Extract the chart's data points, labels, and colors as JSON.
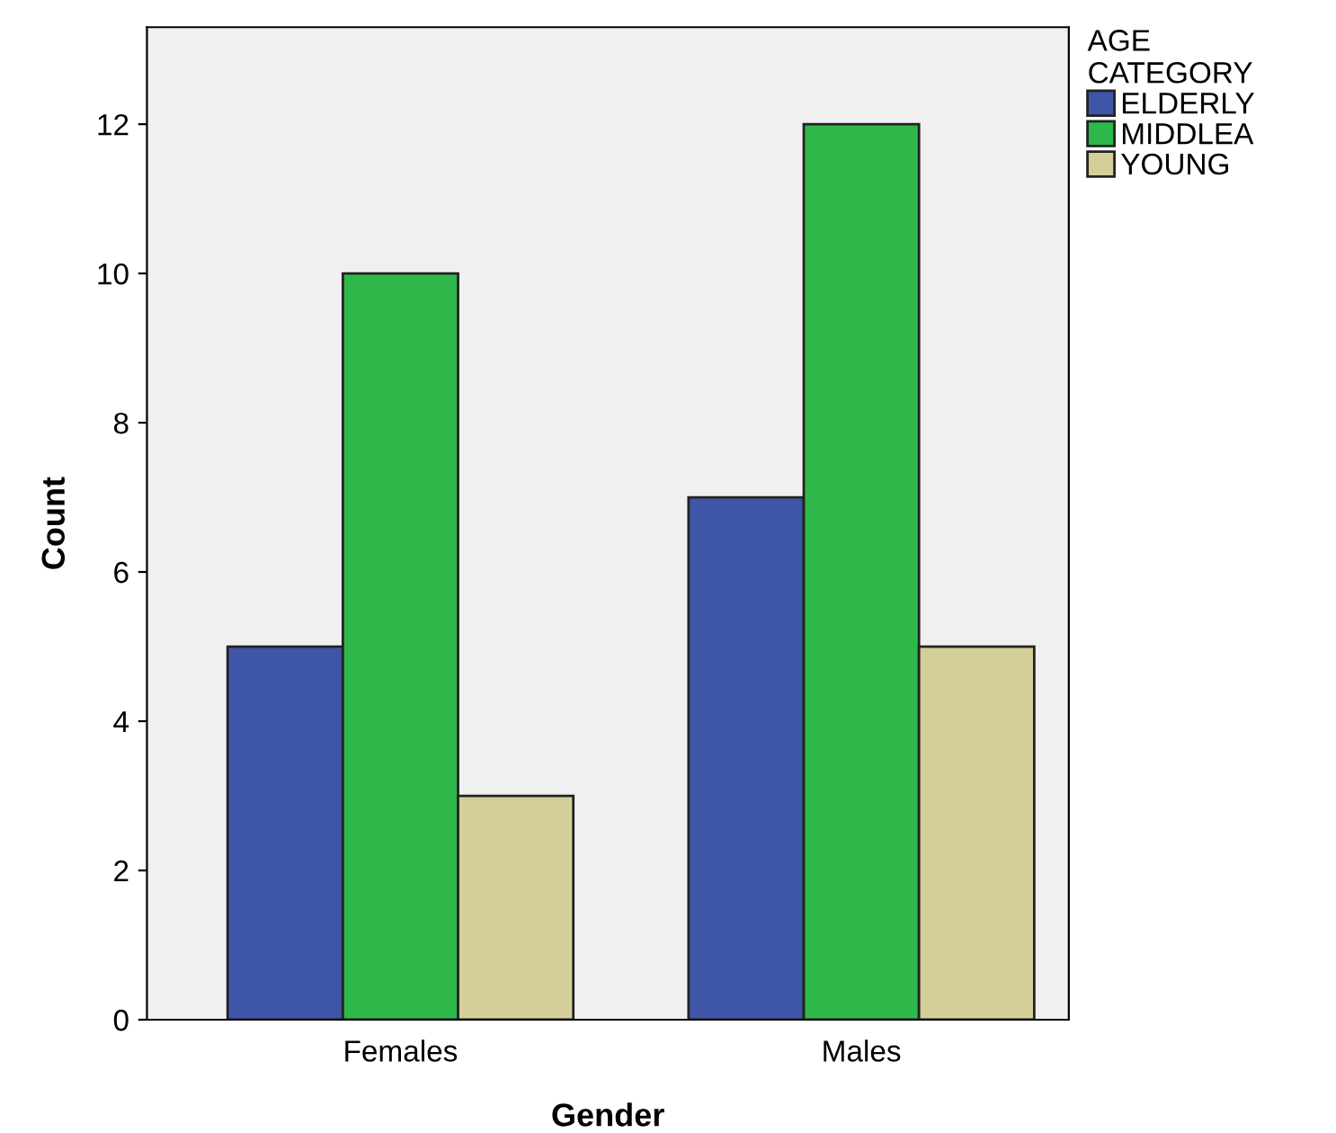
{
  "chart_data": {
    "type": "bar",
    "xlabel": "Gender",
    "ylabel": "Count",
    "legend_title": "AGE\nCATEGORY",
    "categories": [
      "Females",
      "Males"
    ],
    "series": [
      {
        "name": "ELDERLY",
        "color": "#3f55a8",
        "values": [
          5,
          7
        ]
      },
      {
        "name": "MIDDLEA",
        "color": "#2fb84a",
        "values": [
          10,
          12
        ]
      },
      {
        "name": "YOUNG",
        "color": "#d4cf98",
        "values": [
          3,
          5
        ]
      }
    ],
    "ylim": [
      0,
      13.3
    ],
    "yticks": [
      0,
      2,
      4,
      6,
      8,
      10,
      12
    ],
    "grid": false,
    "legend": "top right"
  }
}
